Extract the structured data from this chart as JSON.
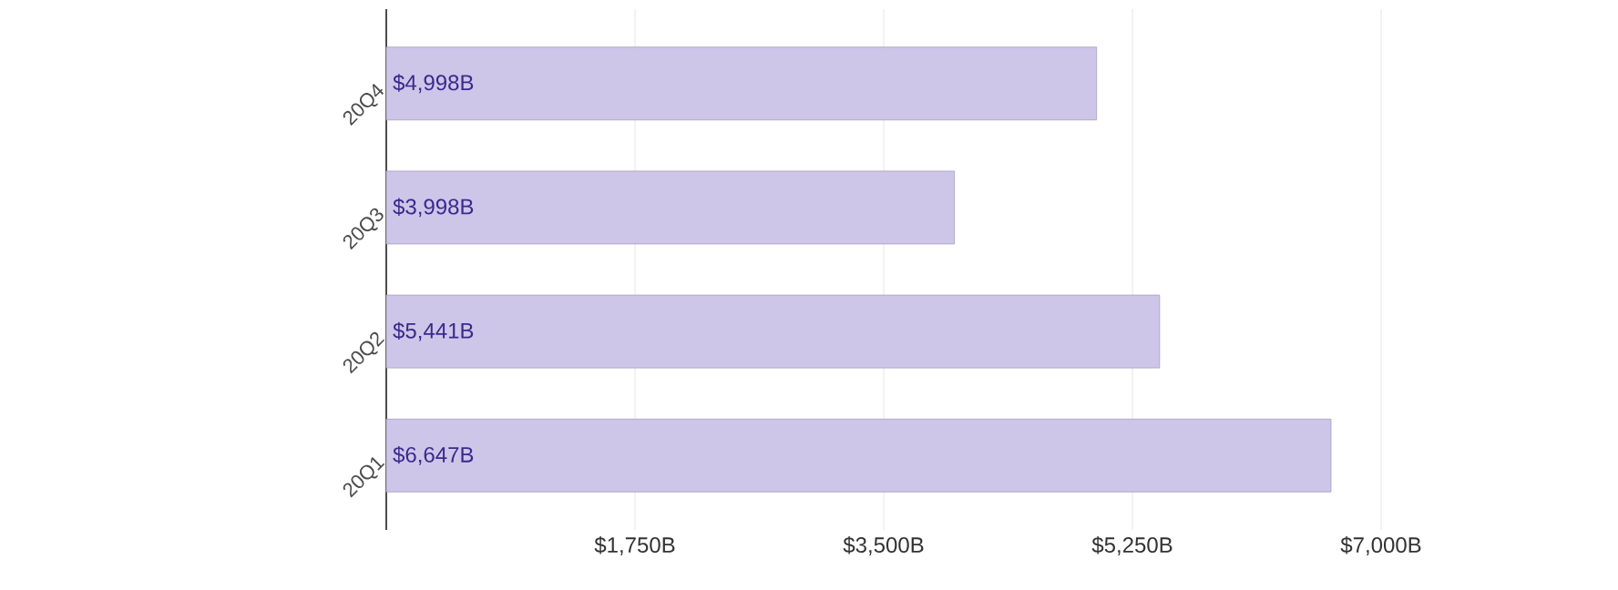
{
  "chart_data": {
    "type": "bar",
    "orientation": "horizontal",
    "categories": [
      "20Q4",
      "20Q3",
      "20Q2",
      "20Q1"
    ],
    "values": [
      4998,
      3998,
      5441,
      6647
    ],
    "value_labels": [
      "$4,998B",
      "$3,998B",
      "$5,441B",
      "$6,647B"
    ],
    "color": "#cdc6e9",
    "xlim": [
      0,
      7000
    ],
    "xticks": [
      {
        "value": 1750,
        "label": "$1,750B"
      },
      {
        "value": 3500,
        "label": "$3,500B"
      },
      {
        "value": 5250,
        "label": "$5,250B"
      },
      {
        "value": 7000,
        "label": "$7,000B"
      }
    ],
    "grid": "x"
  }
}
